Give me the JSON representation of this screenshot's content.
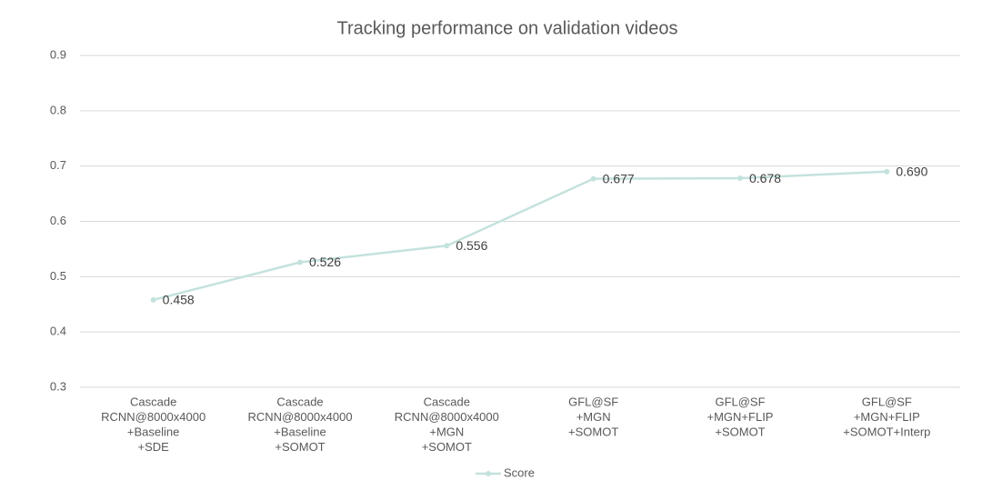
{
  "chart_data": {
    "type": "line",
    "title": "Tracking performance  on validation videos",
    "categories": [
      [
        "Cascade",
        "RCNN@8000x4000",
        "+Baseline",
        "+SDE"
      ],
      [
        "Cascade",
        "RCNN@8000x4000",
        "+Baseline",
        "+SOMOT"
      ],
      [
        "Cascade",
        "RCNN@8000x4000",
        "+MGN",
        "+SOMOT"
      ],
      [
        "GFL@SF",
        "+MGN",
        "+SOMOT"
      ],
      [
        "GFL@SF",
        "+MGN+FLIP",
        "+SOMOT"
      ],
      [
        "GFL@SF",
        "+MGN+FLIP",
        "+SOMOT+Interp"
      ]
    ],
    "series": [
      {
        "name": "Score",
        "color": "#c4e2dd",
        "values": [
          0.458,
          0.526,
          0.556,
          0.677,
          0.678,
          0.69
        ],
        "value_labels": [
          "0.458",
          "0.526",
          "0.556",
          "0.677",
          "0.678",
          "0.690"
        ]
      }
    ],
    "ylim": [
      0.3,
      0.9
    ],
    "yticks": [
      0.3,
      0.4,
      0.5,
      0.6,
      0.7,
      0.8,
      0.9
    ],
    "grid": true,
    "legend": "bottom"
  }
}
